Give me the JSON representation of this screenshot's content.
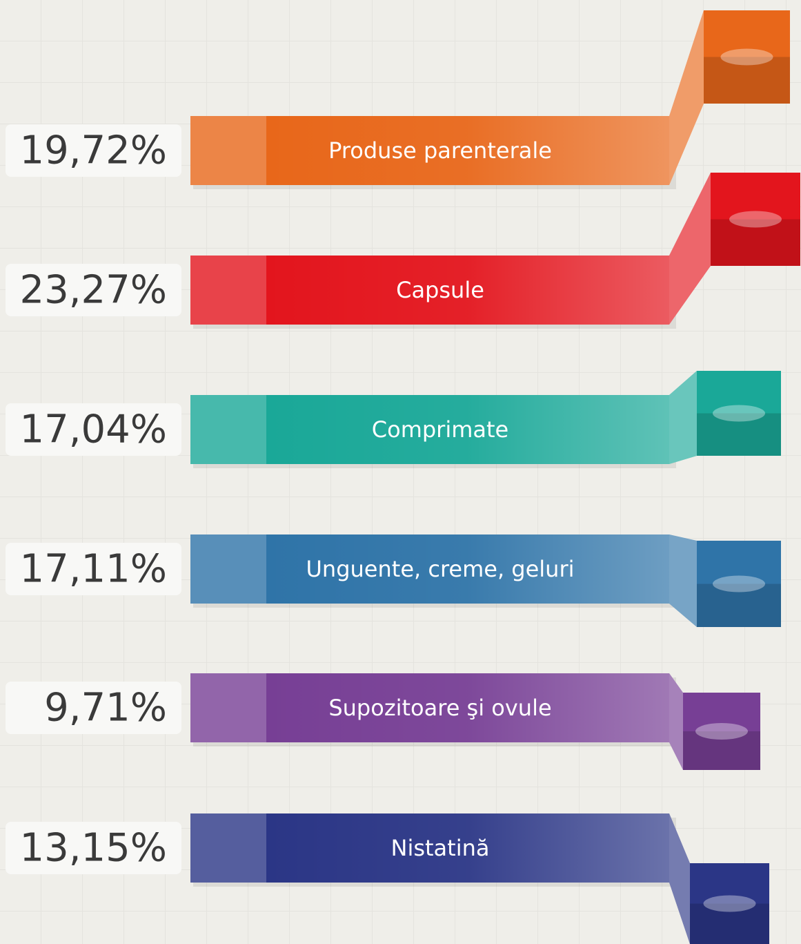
{
  "items": [
    {
      "value": "19,72%",
      "label": "Produse parenterale",
      "color": "#e8671a"
    },
    {
      "value": "23,27%",
      "label": "Capsule",
      "color": "#e3151d"
    },
    {
      "value": "17,04%",
      "label": "Comprimate",
      "color": "#1aa898"
    },
    {
      "value": "17,11%",
      "label": "Unguente, creme, geluri",
      "color": "#2f74a8"
    },
    {
      "value": "9,71%",
      "label": "Supozitoare şi ovule",
      "color": "#773f95"
    },
    {
      "value": "13,15%",
      "label": "Nistatină",
      "color": "#2b3686"
    }
  ]
}
